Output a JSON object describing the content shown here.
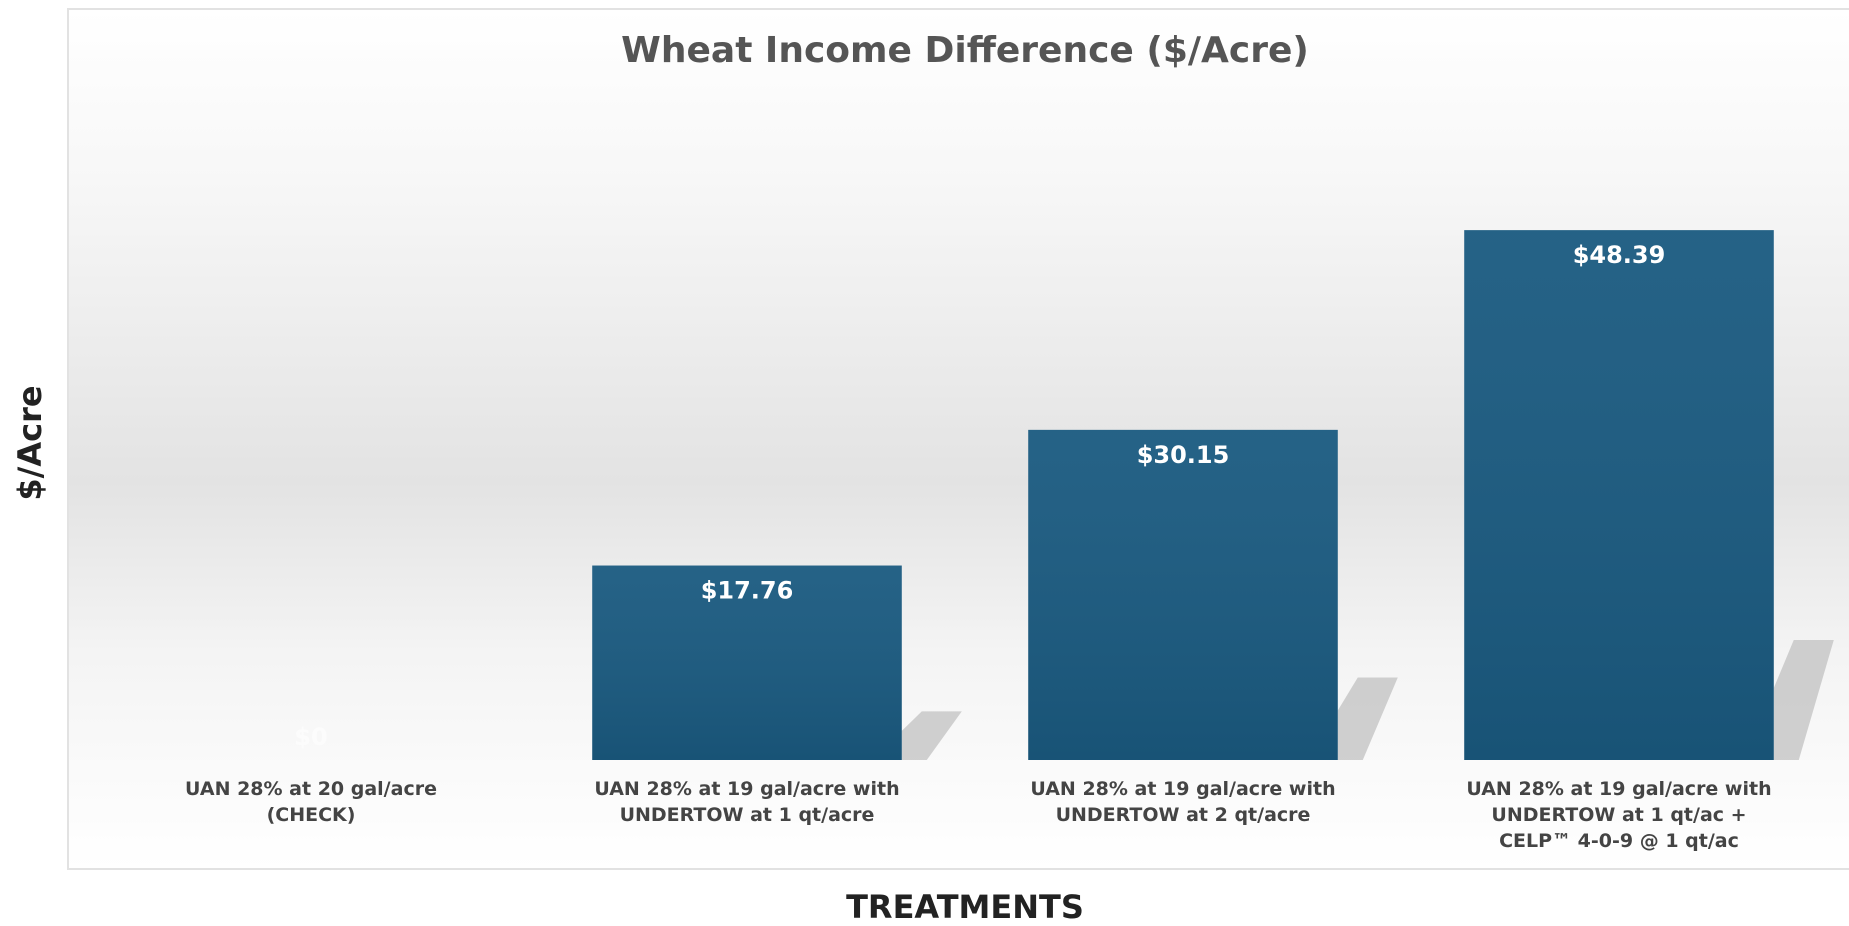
{
  "chart_data": {
    "type": "bar",
    "title": "Wheat Income Difference ($/Acre)",
    "x_label": "TREATMENTS",
    "y_label": "$/Acre",
    "categories": [
      "UAN 28% at 20 gal/acre (CHECK)",
      "UAN 28% at 19 gal/acre with UNDERTOW at 1 qt/acre",
      "UAN 28% at 19 gal/acre with UNDERTOW at 2 qt/acre",
      "UAN 28% at 19 gal/acre with UNDERTOW at 1 qt/ac + CELP™ 4-0-9 @ 1 qt/ac"
    ],
    "values": [
      0,
      17.76,
      30.15,
      48.39
    ],
    "value_labels": [
      "$0",
      "$17.76",
      "$30.15",
      "$48.39"
    ],
    "color": "#1a5a80",
    "ylim": [
      0,
      60
    ]
  }
}
